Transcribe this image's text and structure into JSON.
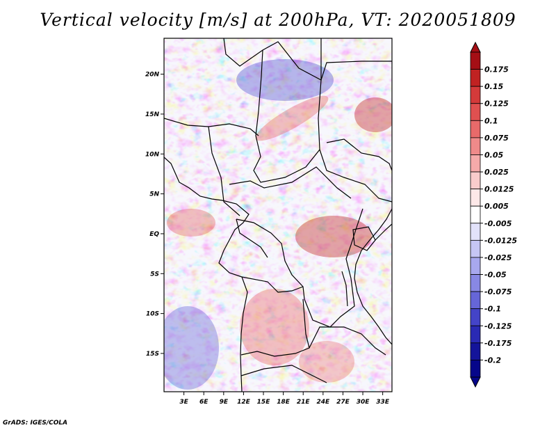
{
  "title": "Vertical velocity [m/s] at 200hPa, VT: 2020051809",
  "credit": "GrADS: IGES/COLA",
  "map": {
    "lon_labels": [
      "3E",
      "6E",
      "9E",
      "12E",
      "15E",
      "18E",
      "21E",
      "24E",
      "27E",
      "30E",
      "33E"
    ],
    "lat_labels": [
      "20N",
      "15N",
      "10N",
      "5N",
      "EQ",
      "5S",
      "10S",
      "15S"
    ],
    "lon_values": [
      3,
      6,
      9,
      12,
      15,
      18,
      21,
      24,
      27,
      30,
      33
    ],
    "lat_values": [
      20,
      15,
      10,
      5,
      0,
      -5,
      -10,
      -15
    ],
    "lon_range": [
      0,
      34.4
    ],
    "lat_range": [
      -19.8,
      24.5
    ],
    "field_variable": "vertical velocity",
    "units": "m/s",
    "level": "200hPa"
  },
  "colorbar": {
    "labels": [
      "0.175",
      "0.15",
      "0.125",
      "0.1",
      "0.075",
      "0.05",
      "0.025",
      "0.0125",
      "0.005",
      "-0.005",
      "-0.0125",
      "-0.025",
      "-0.05",
      "-0.075",
      "-0.1",
      "-0.125",
      "-0.175",
      "-0.2"
    ],
    "colors": [
      "#a50f15",
      "#c02222",
      "#d43a3a",
      "#e05050",
      "#e86a6a",
      "#ef8a8a",
      "#f5aaaa",
      "#f9cccc",
      "#fde8e8",
      "#ffffff",
      "#e2e2fa",
      "#c6c6f4",
      "#a8a8ee",
      "#8888e4",
      "#6666d8",
      "#4444c8",
      "#2a2ab4",
      "#14149a",
      "#06068a"
    ]
  }
}
